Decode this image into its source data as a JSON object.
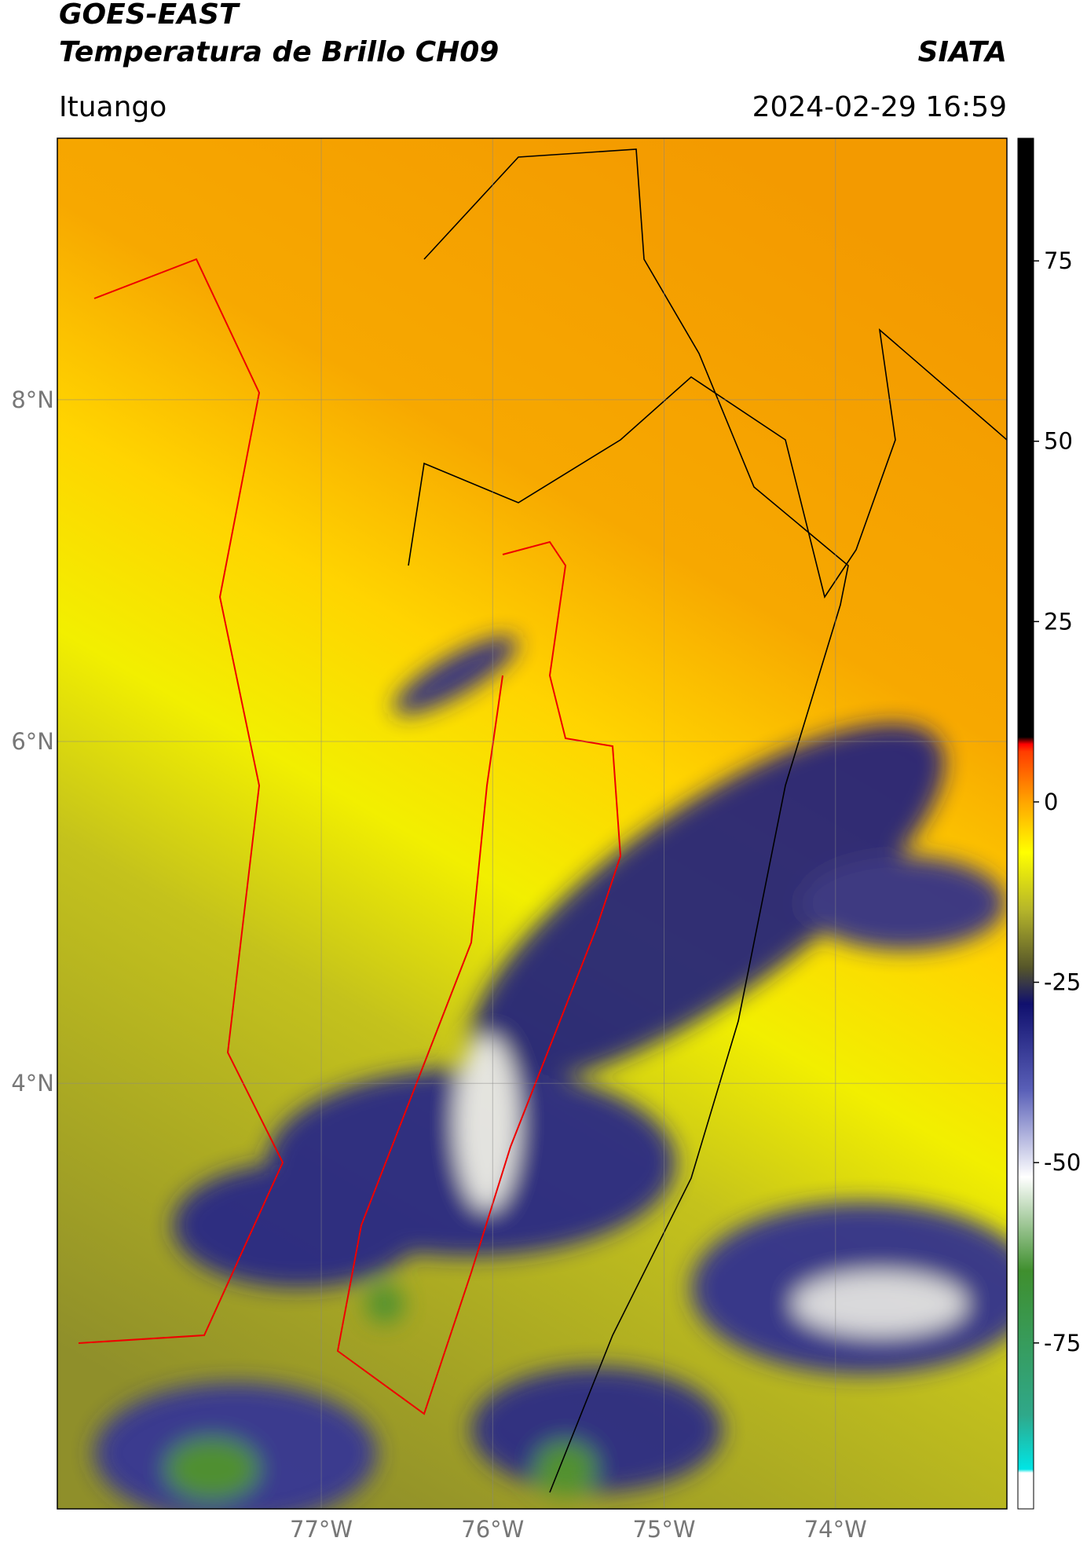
{
  "header": {
    "title": "GOES-EAST",
    "subtitle": "Temperatura de Brillo CH09",
    "source": "SIATA",
    "region": "Ituango",
    "timestamp": "2024-02-29 16:59"
  },
  "map": {
    "xlim": [
      -78.54,
      -73.0
    ],
    "ylim": [
      1.51,
      9.53
    ],
    "xticks": [
      {
        "value": -77,
        "label": "77°W"
      },
      {
        "value": -76,
        "label": "76°W"
      },
      {
        "value": -75,
        "label": "75°W"
      },
      {
        "value": -74,
        "label": "74°W"
      }
    ],
    "yticks": [
      {
        "value": 8,
        "label": "8°N"
      },
      {
        "value": 6,
        "label": "6°N"
      },
      {
        "value": 4,
        "label": "4°N"
      }
    ],
    "grid": true
  },
  "colorbar": {
    "lim": [
      -98,
      92
    ],
    "ticks": [
      75,
      50,
      25,
      0,
      -25,
      -50,
      -75
    ],
    "colorscale": [
      {
        "value": -98,
        "color": "#ffffff"
      },
      {
        "value": -93,
        "color": "#ffffff"
      },
      {
        "value": -92.5,
        "color": "#00e5e5"
      },
      {
        "value": -85,
        "color": "#2fa88a"
      },
      {
        "value": -65,
        "color": "#3f8f2e"
      },
      {
        "value": -52,
        "color": "#ffffff"
      },
      {
        "value": -40,
        "color": "#5a60b8"
      },
      {
        "value": -28,
        "color": "#10106e"
      },
      {
        "value": -23,
        "color": "#55552a"
      },
      {
        "value": -15,
        "color": "#b5b52a"
      },
      {
        "value": -7,
        "color": "#ffff00"
      },
      {
        "value": 0,
        "color": "#ffa500"
      },
      {
        "value": 7,
        "color": "#ff3c00"
      },
      {
        "value": 8,
        "color": "#ff0000"
      },
      {
        "value": 9,
        "color": "#000000"
      },
      {
        "value": 92,
        "color": "#000000"
      }
    ]
  }
}
